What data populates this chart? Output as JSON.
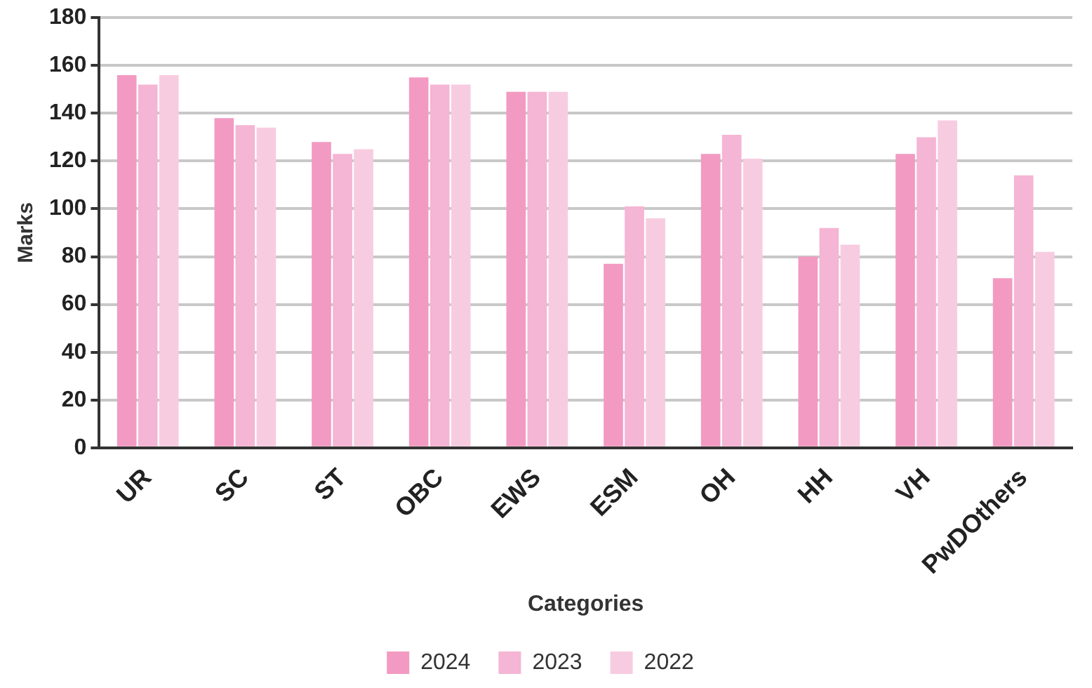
{
  "chart_data": {
    "type": "bar",
    "xlabel": "Categories",
    "ylabel": "Marks",
    "categories": [
      "UR",
      "SC",
      "ST",
      "OBC",
      "EWS",
      "ESM",
      "OH",
      "HH",
      "VH",
      "PwDOthers"
    ],
    "series": [
      {
        "name": "2024",
        "color": "#f29ac2",
        "values": [
          156,
          138,
          128,
          155,
          149,
          77,
          123,
          80,
          123,
          71
        ]
      },
      {
        "name": "2023",
        "color": "#f5b5d4",
        "values": [
          152,
          135,
          123,
          152,
          149,
          101,
          131,
          92,
          130,
          114
        ]
      },
      {
        "name": "2022",
        "color": "#f8cce0",
        "values": [
          156,
          134,
          125,
          152,
          149,
          96,
          121,
          85,
          137,
          82
        ]
      }
    ],
    "ylim": [
      0,
      180
    ],
    "yticks": [
      0,
      20,
      40,
      60,
      80,
      100,
      120,
      140,
      160,
      180
    ],
    "grid": "y",
    "legend": "bottom"
  }
}
